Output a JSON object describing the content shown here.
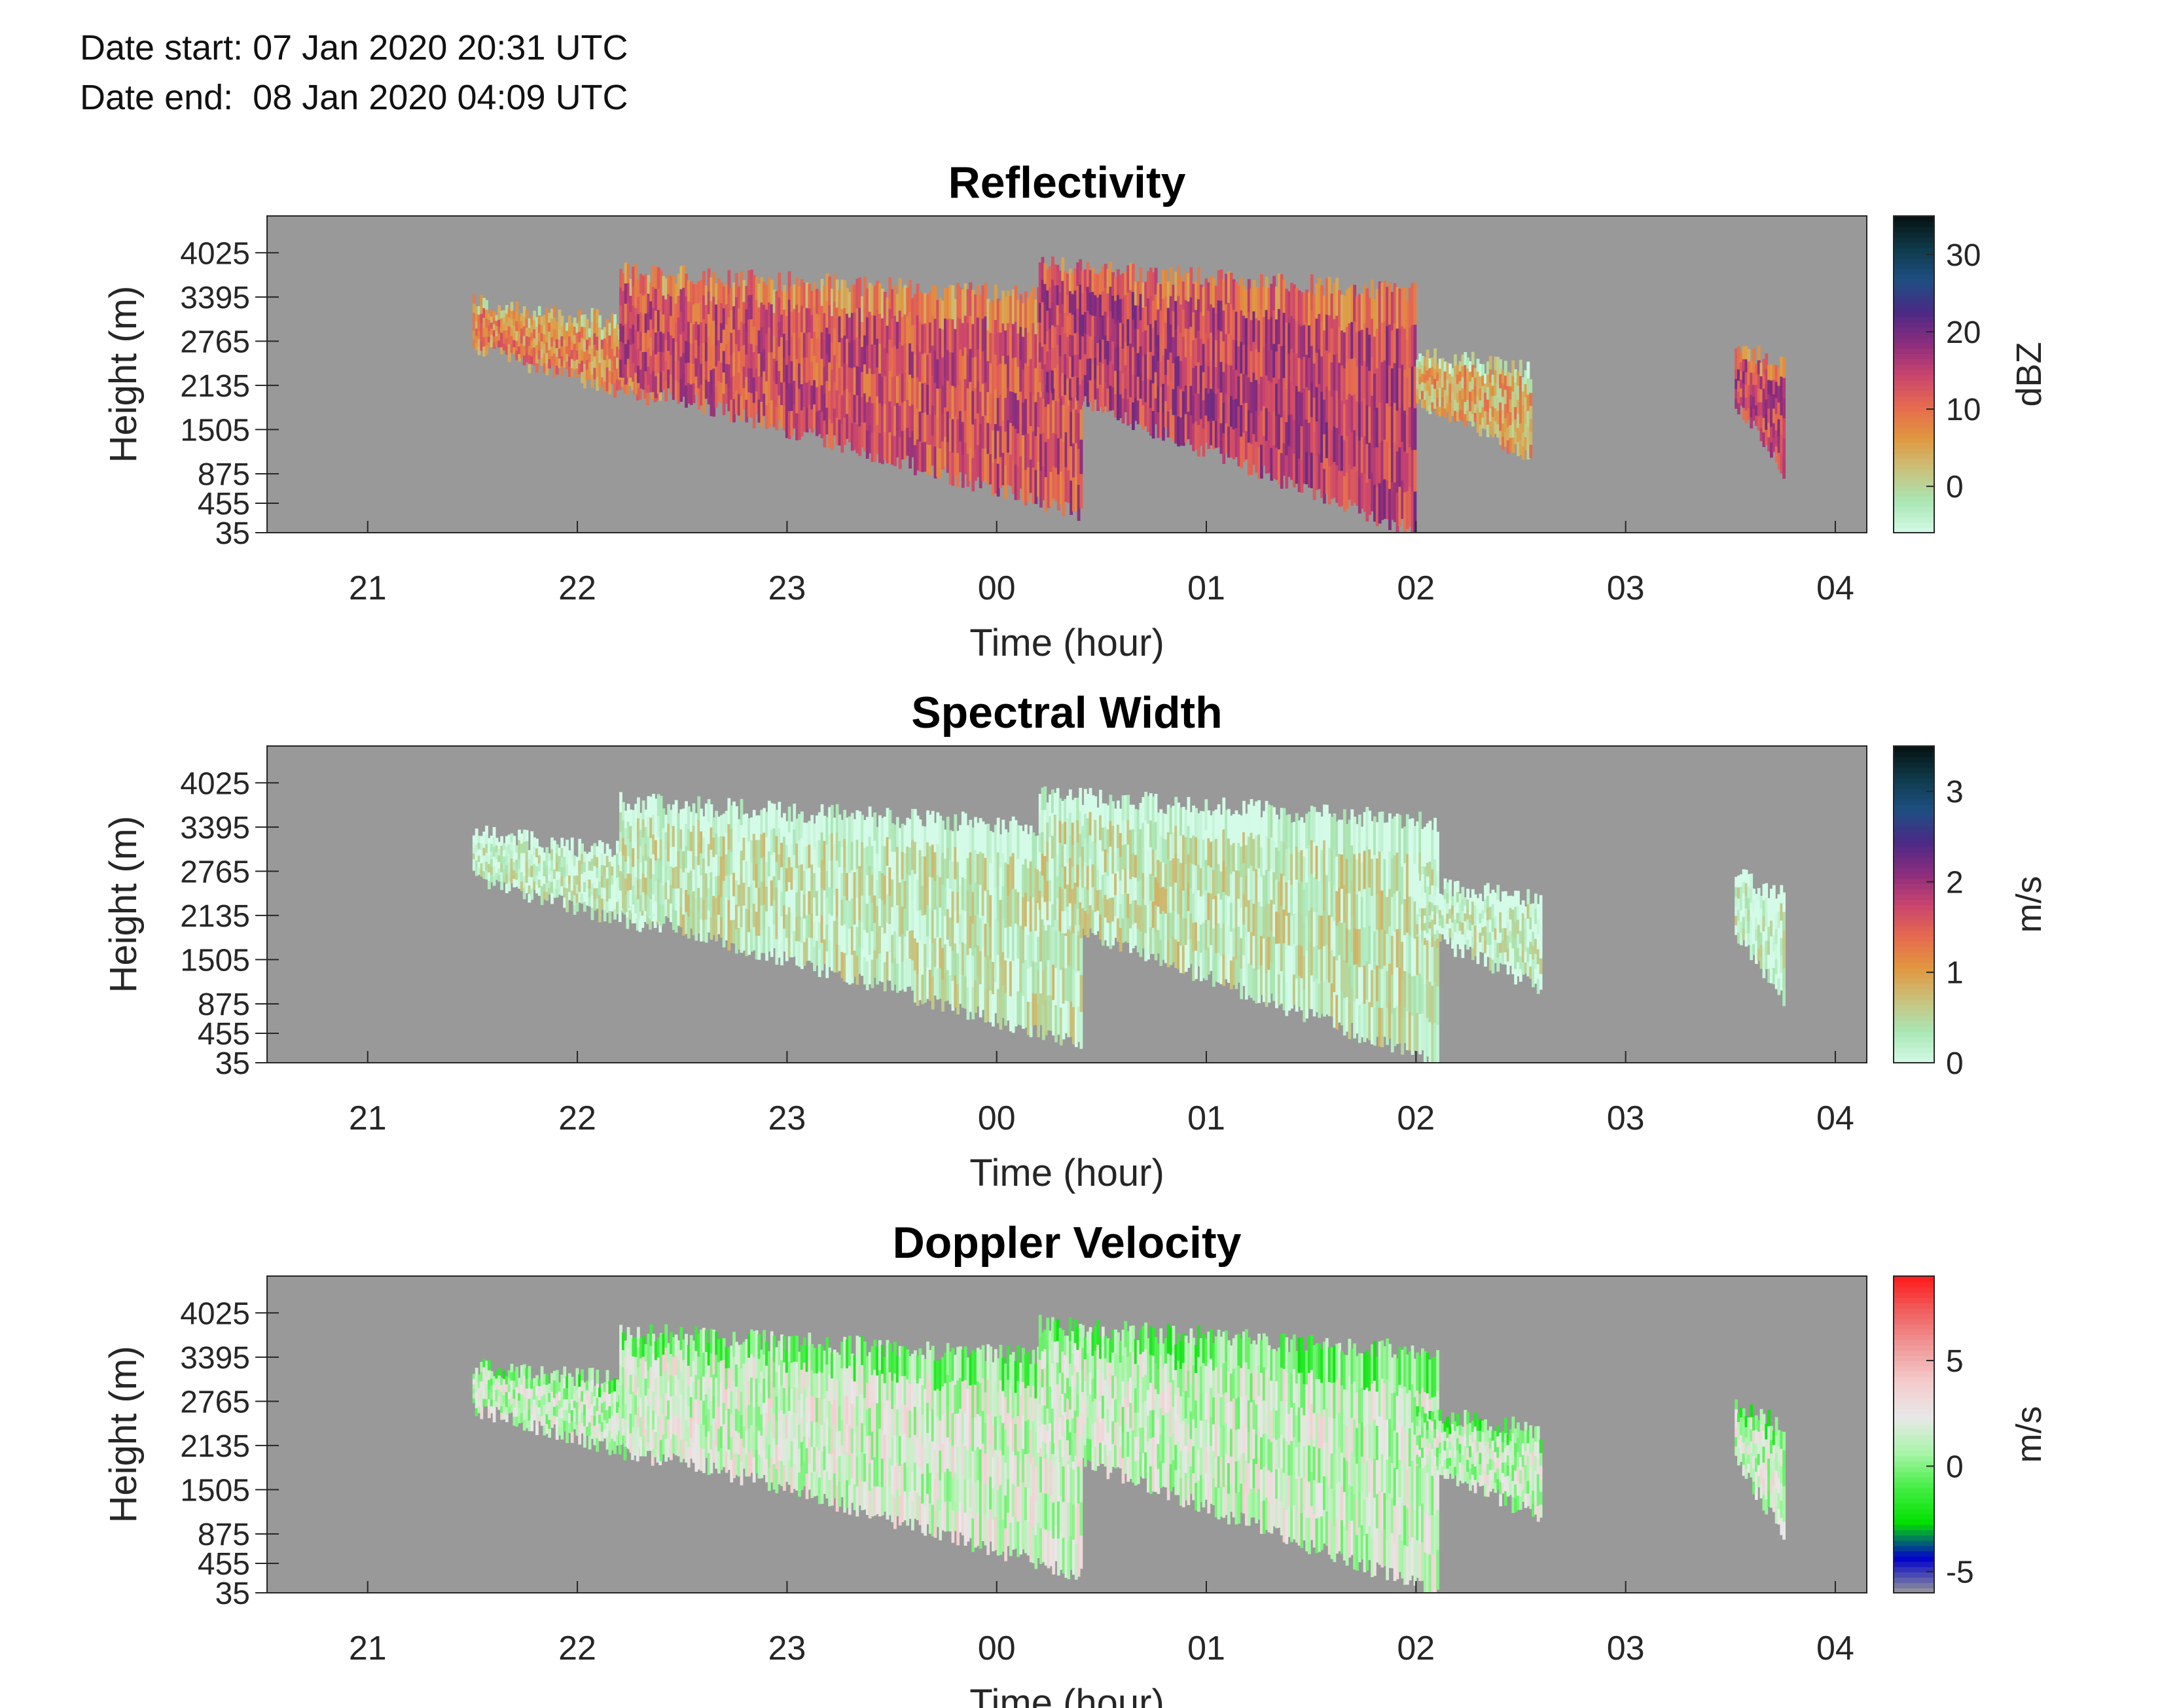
{
  "header": {
    "date_start": "Date start: 07 Jan 2020 20:31 UTC",
    "date_end": "Date end:  08 Jan 2020 04:09 UTC"
  },
  "chart_data": [
    {
      "type": "heatmap",
      "title": "Reflectivity",
      "xlabel": "Time (hour)",
      "ylabel": "Height (m)",
      "colorbar_label": "dBZ",
      "x_ticks": [
        21,
        22,
        23,
        24,
        25,
        26,
        27,
        28
      ],
      "x_tick_labels": [
        "21",
        "22",
        "23",
        "00",
        "01",
        "02",
        "03",
        "04"
      ],
      "xlim": [
        20.52,
        28.15
      ],
      "y_ticks": [
        35,
        455,
        875,
        1505,
        2135,
        2765,
        3395,
        4025
      ],
      "y_tick_labels": [
        "35",
        "455",
        "875",
        "1505",
        "2135",
        "2765",
        "3395",
        "4025"
      ],
      "ylim": [
        35,
        4550
      ],
      "colorbar_ticks": [
        0,
        10,
        20,
        30
      ],
      "colorbar_range": [
        -6,
        35
      ],
      "colormap": [
        "#d4fbe8",
        "#a9e6b4",
        "#c9c27c",
        "#e0973f",
        "#e66a4f",
        "#c9446e",
        "#8a2d7d",
        "#4a2a86",
        "#1d4f82",
        "#0f3a4a",
        "#061212"
      ],
      "background": "#999999",
      "echo_regions": [
        {
          "t0": 21.5,
          "t1": 22.4,
          "h_top": 3300,
          "h_bot": 1900,
          "level": 8
        },
        {
          "t0": 22.2,
          "t1": 24.4,
          "h_top": 3750,
          "h_bot": 300,
          "level": 13
        },
        {
          "t0": 24.2,
          "t1": 26.0,
          "h_top": 3850,
          "h_bot": 35,
          "level": 15
        },
        {
          "t0": 26.0,
          "t1": 26.55,
          "h_top": 2600,
          "h_bot": 1100,
          "level": 5
        },
        {
          "t0": 27.52,
          "t1": 27.75,
          "h_top": 2700,
          "h_bot": 900,
          "level": 14
        }
      ]
    },
    {
      "type": "heatmap",
      "title": "Spectral Width",
      "xlabel": "Time (hour)",
      "ylabel": "Height (m)",
      "colorbar_label": "m/s",
      "x_ticks": [
        21,
        22,
        23,
        24,
        25,
        26,
        27,
        28
      ],
      "x_tick_labels": [
        "21",
        "22",
        "23",
        "00",
        "01",
        "02",
        "03",
        "04"
      ],
      "xlim": [
        20.52,
        28.15
      ],
      "y_ticks": [
        35,
        455,
        875,
        1505,
        2135,
        2765,
        3395,
        4025
      ],
      "y_tick_labels": [
        "35",
        "455",
        "875",
        "1505",
        "2135",
        "2765",
        "3395",
        "4025"
      ],
      "ylim": [
        35,
        4550
      ],
      "colorbar_ticks": [
        0,
        1,
        2,
        3
      ],
      "colorbar_range": [
        0,
        3.5
      ],
      "colormap": [
        "#d4fbe8",
        "#a9e6b4",
        "#c9c27c",
        "#e0973f",
        "#e66a4f",
        "#c9446e",
        "#8a2d7d",
        "#4a2a86",
        "#1d4f82",
        "#0f3a4a",
        "#061212"
      ],
      "background": "#999999",
      "echo_regions": [
        {
          "t0": 21.5,
          "t1": 22.4,
          "h_top": 3300,
          "h_bot": 1900,
          "level": 0.2
        },
        {
          "t0": 22.2,
          "t1": 24.4,
          "h_top": 3750,
          "h_bot": 300,
          "level": 0.3
        },
        {
          "t0": 24.2,
          "t1": 26.1,
          "h_top": 3850,
          "h_bot": 35,
          "level": 0.35
        },
        {
          "t0": 26.0,
          "t1": 26.6,
          "h_top": 2600,
          "h_bot": 1100,
          "level": 0.2
        },
        {
          "t0": 27.52,
          "t1": 27.75,
          "h_top": 2700,
          "h_bot": 900,
          "level": 0.2
        }
      ]
    },
    {
      "type": "heatmap",
      "title": "Doppler Velocity",
      "xlabel": "Time (hour)",
      "ylabel": "Height (m)",
      "colorbar_label": "m/s",
      "x_ticks": [
        21,
        22,
        23,
        24,
        25,
        26,
        27,
        28
      ],
      "x_tick_labels": [
        "21",
        "22",
        "23",
        "00",
        "01",
        "02",
        "03",
        "04"
      ],
      "xlim": [
        20.52,
        28.15
      ],
      "y_ticks": [
        35,
        455,
        875,
        1505,
        2135,
        2765,
        3395,
        4025
      ],
      "y_tick_labels": [
        "35",
        "455",
        "875",
        "1505",
        "2135",
        "2765",
        "3395",
        "4025"
      ],
      "ylim": [
        35,
        4550
      ],
      "colorbar_ticks": [
        -5,
        0,
        5
      ],
      "colorbar_range": [
        -6,
        9
      ],
      "colormap": [
        "#999999",
        "#0000cc",
        "#00e000",
        "#44ee44",
        "#aaf5aa",
        "#e8e8e8",
        "#f4cccc",
        "#f09a9a",
        "#f06060",
        "#ff1a1a"
      ],
      "background": "#999999",
      "echo_regions": [
        {
          "t0": 21.5,
          "t1": 22.4,
          "h_top": 3300,
          "h_bot": 1900,
          "level": 1.5
        },
        {
          "t0": 22.2,
          "t1": 24.4,
          "h_top": 3750,
          "h_bot": 300,
          "level": 1.8
        },
        {
          "t0": 24.2,
          "t1": 26.1,
          "h_top": 3850,
          "h_bot": 35,
          "level": 1.6
        },
        {
          "t0": 26.0,
          "t1": 26.6,
          "h_top": 2600,
          "h_bot": 1100,
          "level": 1.4
        },
        {
          "t0": 27.52,
          "t1": 27.75,
          "h_top": 2700,
          "h_bot": 900,
          "level": 1.5
        }
      ]
    }
  ]
}
